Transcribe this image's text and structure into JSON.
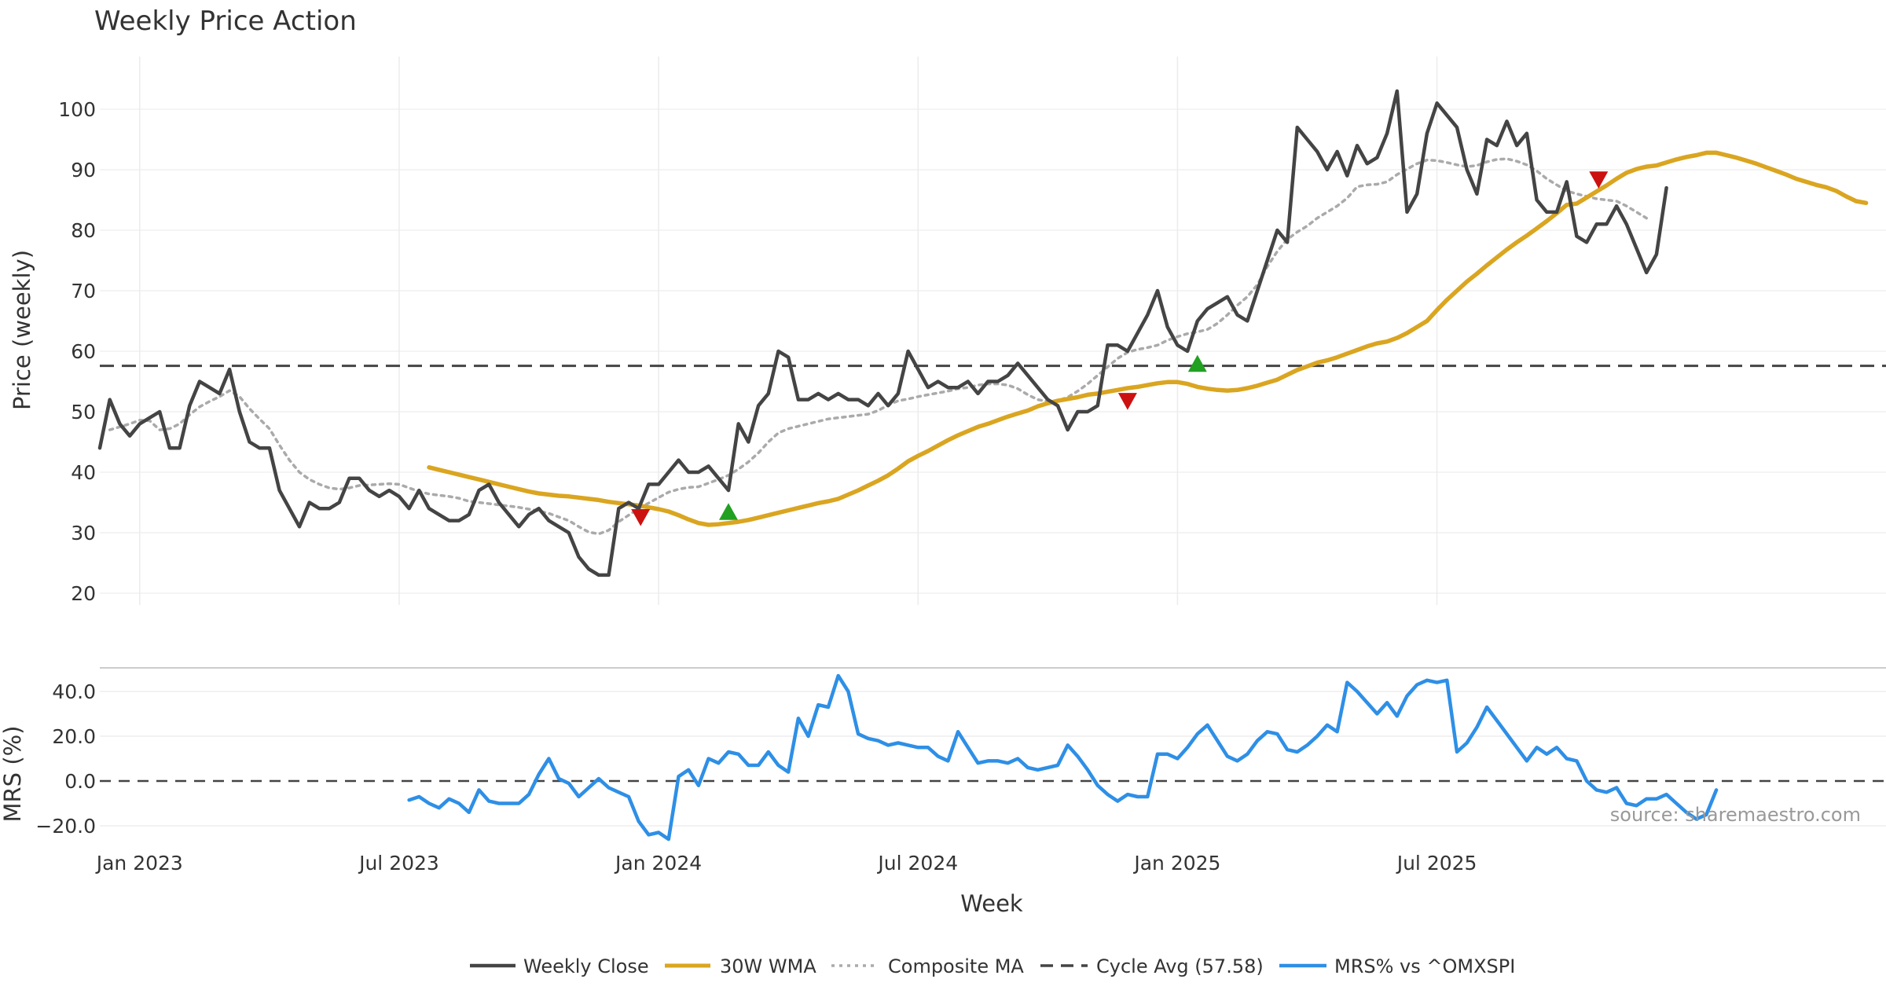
{
  "chart_data": [
    {
      "type": "line",
      "title": "Weekly Price Action",
      "ylabel": "Price (weekly)",
      "ylim": [
        18,
        107
      ],
      "yticks": [
        20,
        30,
        40,
        50,
        60,
        70,
        80,
        90,
        100
      ],
      "xlim": [
        0,
        179
      ],
      "x_unit": "weeks since 2022-12-05",
      "cycle_avg": 57.58,
      "series": [
        {
          "name": "Weekly Close",
          "color": "#444444",
          "style": "solid",
          "x_start": 0,
          "values": [
            44,
            52,
            48,
            46,
            48,
            49,
            50,
            44,
            44,
            51,
            55,
            54,
            53,
            57,
            50,
            45,
            44,
            44,
            37,
            34,
            31,
            35,
            34,
            34,
            35,
            39,
            39,
            37,
            36,
            37,
            36,
            34,
            37,
            34,
            33,
            32,
            32,
            33,
            37,
            38,
            35,
            33,
            31,
            33,
            34,
            32,
            31,
            30,
            26,
            24,
            23,
            23,
            34,
            35,
            34,
            38,
            38,
            40,
            42,
            40,
            40,
            41,
            39,
            37,
            48,
            45,
            51,
            53,
            60,
            59,
            52,
            52,
            53,
            52,
            53,
            52,
            52,
            51,
            53,
            51,
            53,
            60,
            57,
            54,
            55,
            54,
            54,
            55,
            53,
            55,
            55,
            56,
            58,
            56,
            54,
            52,
            51,
            47,
            50,
            50,
            51,
            61,
            61,
            60,
            63,
            66,
            70,
            64,
            61,
            60,
            65,
            67,
            68,
            69,
            66,
            65,
            70,
            75,
            80,
            78,
            97,
            95,
            93,
            90,
            93,
            89,
            94,
            91,
            92,
            96,
            103,
            83,
            86,
            96,
            101,
            99,
            97,
            90,
            86,
            95,
            94,
            98,
            94,
            96,
            85,
            83,
            83,
            88,
            79,
            78,
            81,
            81,
            84,
            81,
            77,
            73,
            76,
            87
          ]
        },
        {
          "name": "30W WMA",
          "color": "#DAA520",
          "style": "solid",
          "x_start": 33,
          "values": [
            40.8,
            40.4,
            40.0,
            39.6,
            39.2,
            38.8,
            38.4,
            38.0,
            37.6,
            37.2,
            36.8,
            36.5,
            36.3,
            36.1,
            36.0,
            35.8,
            35.6,
            35.4,
            35.1,
            34.9,
            34.7,
            34.5,
            34.2,
            33.9,
            33.5,
            32.9,
            32.2,
            31.6,
            31.3,
            31.4,
            31.6,
            31.8,
            32.1,
            32.5,
            32.9,
            33.3,
            33.7,
            34.1,
            34.5,
            34.9,
            35.2,
            35.6,
            36.3,
            37.0,
            37.8,
            38.6,
            39.5,
            40.6,
            41.8,
            42.7,
            43.5,
            44.4,
            45.3,
            46.1,
            46.8,
            47.5,
            48.0,
            48.6,
            49.2,
            49.7,
            50.2,
            50.9,
            51.4,
            51.8,
            52.1,
            52.4,
            52.8,
            53.0,
            53.3,
            53.6,
            53.9,
            54.1,
            54.4,
            54.7,
            54.9,
            54.9,
            54.6,
            54.1,
            53.8,
            53.6,
            53.5,
            53.6,
            53.9,
            54.3,
            54.8,
            55.3,
            56.1,
            56.9,
            57.5,
            58.1,
            58.5,
            59.0,
            59.6,
            60.2,
            60.8,
            61.3,
            61.6,
            62.2,
            63.0,
            64.0,
            65.0,
            66.8,
            68.5,
            70.0,
            71.5,
            72.8,
            74.2,
            75.5,
            76.8,
            78.0,
            79.1,
            80.3,
            81.5,
            82.8,
            84.2,
            84.4,
            85.4,
            86.4,
            87.4,
            88.5,
            89.5,
            90.1,
            90.5,
            90.7,
            91.2,
            91.7,
            92.1,
            92.4,
            92.8,
            92.8,
            92.4,
            92.0,
            91.5,
            91.0,
            90.4,
            89.8,
            89.2,
            88.5,
            88.0,
            87.5,
            87.1,
            86.5,
            85.6,
            84.8,
            84.5
          ]
        },
        {
          "name": "Composite MA",
          "color": "#AAAAAA",
          "style": "dotted",
          "x_start": 1,
          "values": [
            47,
            47.5,
            48,
            48.6,
            48.5,
            47,
            47.2,
            48,
            49.5,
            50.8,
            51.7,
            52.5,
            53.5,
            52.5,
            50.5,
            48.8,
            47.2,
            44.5,
            42,
            40,
            38.8,
            38,
            37.4,
            37.2,
            37.4,
            37.8,
            37.9,
            38,
            38.1,
            38,
            37.4,
            36.8,
            36.4,
            36.2,
            36,
            35.7,
            35.2,
            35,
            34.8,
            34.6,
            34.4,
            34.2,
            33.9,
            33.6,
            33.2,
            32.6,
            32,
            31,
            30.1,
            29.8,
            30.4,
            31.8,
            32.9,
            34,
            34.9,
            35.8,
            36.7,
            37.2,
            37.5,
            37.6,
            38.2,
            38.8,
            39.5,
            40.5,
            41.7,
            43.2,
            45,
            46.5,
            47.2,
            47.6,
            48,
            48.4,
            48.8,
            49,
            49.2,
            49.4,
            49.6,
            50.2,
            51.1,
            51.8,
            52.1,
            52.5,
            52.8,
            53.1,
            53.4,
            53.8,
            54,
            54.4,
            54.6,
            54.6,
            54.4,
            53.8,
            52.8,
            52,
            51.7,
            51.8,
            52.4,
            53.4,
            54.6,
            56,
            57.4,
            58.8,
            59.8,
            60.3,
            60.6,
            61,
            61.8,
            62.4,
            62.9,
            63.2,
            63.6,
            64.6,
            66,
            67.6,
            69,
            71,
            74,
            76.5,
            78.5,
            79.7,
            80.7,
            82,
            83,
            84,
            85.3,
            87.2,
            87.5,
            87.6,
            88,
            89.2,
            90.1,
            91,
            91.6,
            91.5,
            91.2,
            90.8,
            90.5,
            90.7,
            91.3,
            91.7,
            91.8,
            91.4,
            90.8,
            89.8,
            88.5,
            87.5,
            86.5,
            86,
            85.6,
            85.2,
            85,
            84.8,
            84,
            83,
            82
          ]
        }
      ],
      "cycle_line": {
        "name": "Cycle Avg (57.58)",
        "value": 57.58,
        "color": "#444444",
        "style": "dashed"
      },
      "markers": [
        {
          "type": "sell",
          "x": 54.2,
          "y": 32.5,
          "color": "#CC1111"
        },
        {
          "type": "buy",
          "x": 63,
          "y": 33.5,
          "color": "#22A022"
        },
        {
          "type": "sell",
          "x": 103,
          "y": 51.7,
          "color": "#CC1111"
        },
        {
          "type": "buy",
          "x": 110,
          "y": 58,
          "color": "#22A022"
        },
        {
          "type": "sell",
          "x": 150.2,
          "y": 88.3,
          "color": "#CC1111"
        }
      ]
    },
    {
      "type": "line",
      "ylabel": "MRS (%)",
      "xlabel": "Week",
      "ylim": [
        -27,
        50
      ],
      "yticks": [
        40.0,
        20.0,
        0.0,
        -20.0
      ],
      "ytick_labels": [
        "40.0",
        "20.0",
        "0.0",
        "−20.0"
      ],
      "xlim": [
        0,
        179
      ],
      "xticks": [
        {
          "label": "Jan 2023",
          "x": 4
        },
        {
          "label": "Jul 2023",
          "x": 30
        },
        {
          "label": "Jan 2024",
          "x": 56
        },
        {
          "label": "Jul 2024",
          "x": 82
        },
        {
          "label": "Jan 2025",
          "x": 108
        },
        {
          "label": "Jul 2025",
          "x": 134
        }
      ],
      "series": [
        {
          "name": "MRS% vs ^OMXSPI",
          "color": "#2E8FE6",
          "style": "solid",
          "x_start": 31,
          "values": [
            -8.5,
            -7,
            -10,
            -12,
            -8,
            -10,
            -14,
            -4,
            -9,
            -10,
            -10,
            -10,
            -6,
            3,
            10,
            1,
            -1,
            -7,
            -3,
            1,
            -3,
            -5,
            -7,
            -18,
            -24,
            -23,
            -26,
            2,
            5,
            -2,
            10,
            8,
            13,
            12,
            7,
            7,
            13,
            7,
            4,
            28,
            20,
            34,
            33,
            47,
            40,
            21,
            19,
            18,
            16,
            17,
            16,
            15,
            15,
            11,
            9,
            22,
            15,
            8,
            9,
            9,
            8,
            10,
            6,
            5,
            6,
            7,
            16,
            11,
            5,
            -2,
            -6,
            -9,
            -6,
            -7,
            -7,
            12,
            12,
            10,
            15,
            21,
            25,
            18,
            11,
            9,
            12,
            18,
            22,
            21,
            14,
            13,
            16,
            20,
            25,
            22,
            44,
            40,
            35,
            30,
            35,
            29,
            38,
            43,
            45,
            44,
            45,
            13,
            17,
            24,
            33,
            27,
            21,
            15,
            9,
            15,
            12,
            15,
            10,
            9,
            0,
            -4,
            -5,
            -3,
            -10,
            -11,
            -8,
            -8,
            -6,
            -10,
            -14,
            -17,
            -15,
            -4
          ]
        }
      ],
      "zero_line": {
        "value": 0,
        "color": "#444444",
        "style": "dashed"
      },
      "annotation": "source: sharemaestro.com"
    }
  ],
  "legend": [
    {
      "label": "Weekly Close",
      "color": "#444444",
      "style": "solid"
    },
    {
      "label": "30W WMA",
      "color": "#DAA520",
      "style": "solid"
    },
    {
      "label": "Composite MA",
      "color": "#AAAAAA",
      "style": "dotted"
    },
    {
      "label": "Cycle Avg (57.58)",
      "color": "#444444",
      "style": "dashed"
    },
    {
      "label": "MRS% vs ^OMXSPI",
      "color": "#2E8FE6",
      "style": "solid"
    }
  ]
}
